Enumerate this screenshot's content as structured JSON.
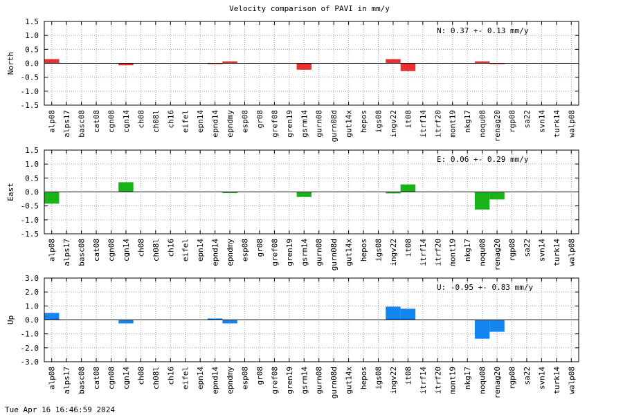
{
  "title": "Velocity comparison of PAVI in mm/y",
  "timestamp": "Tue Apr 16 16:46:59 2024",
  "chart_data": {
    "type": "bar",
    "title": "Velocity comparison of PAVI in mm/y",
    "categories": [
      "alp08",
      "alps17",
      "basc08",
      "cat08",
      "cgn08",
      "cgn14",
      "ch08",
      "ch08l",
      "ch16",
      "eifel",
      "epn14",
      "epnd14",
      "epndmy",
      "esp08",
      "gr08",
      "gref08",
      "gren19",
      "gsrm14",
      "gurn08",
      "gurn08d",
      "gut14x",
      "hepos",
      "igs08",
      "ingv22",
      "it08",
      "itrf14",
      "itrf20",
      "mont19",
      "nkg17",
      "noqu08",
      "renag20",
      "rgp08",
      "sa22",
      "svn14",
      "turk14",
      "walp08"
    ],
    "grid": true,
    "panels": [
      {
        "ylabel": "North",
        "ylim": [
          -1.5,
          1.5
        ],
        "yticks": [
          "1.5",
          "1.0",
          "0.5",
          "0.0",
          "-0.5",
          "-1.0",
          "-1.5"
        ],
        "color": "#e8302f",
        "annotation": "N:   0.37 +-  0.13 mm/y",
        "values": [
          0.15,
          null,
          null,
          null,
          null,
          -0.07,
          null,
          null,
          null,
          null,
          null,
          -0.03,
          0.07,
          null,
          null,
          null,
          null,
          -0.23,
          null,
          null,
          null,
          null,
          null,
          0.15,
          -0.28,
          null,
          null,
          null,
          null,
          0.07,
          -0.03,
          null,
          null,
          null,
          null,
          null
        ]
      },
      {
        "ylabel": "East",
        "ylim": [
          -1.5,
          1.5
        ],
        "yticks": [
          "1.5",
          "1.0",
          "0.5",
          "0.0",
          "-0.5",
          "-1.0",
          "-1.5"
        ],
        "color": "#19b319",
        "annotation": "E:   0.06 +-  0.29 mm/y",
        "values": [
          -0.42,
          null,
          null,
          null,
          null,
          0.35,
          null,
          null,
          null,
          null,
          null,
          null,
          -0.04,
          null,
          null,
          null,
          null,
          -0.18,
          null,
          null,
          null,
          null,
          null,
          -0.05,
          0.27,
          null,
          null,
          null,
          null,
          -0.63,
          -0.27,
          null,
          null,
          null,
          null,
          null
        ]
      },
      {
        "ylabel": "Up",
        "ylim": [
          -3.0,
          3.0
        ],
        "yticks": [
          "3.0",
          "2.0",
          "1.0",
          "0.0",
          "-1.0",
          "-2.0",
          "-3.0"
        ],
        "color": "#1485ee",
        "annotation": "U:  -0.95 +-  0.83 mm/y",
        "values": [
          0.5,
          null,
          null,
          null,
          null,
          -0.25,
          null,
          null,
          null,
          null,
          null,
          0.1,
          -0.25,
          null,
          null,
          null,
          null,
          null,
          null,
          null,
          null,
          null,
          null,
          0.95,
          0.8,
          null,
          null,
          null,
          null,
          -1.35,
          -0.85,
          null,
          null,
          null,
          null,
          null
        ]
      }
    ]
  }
}
